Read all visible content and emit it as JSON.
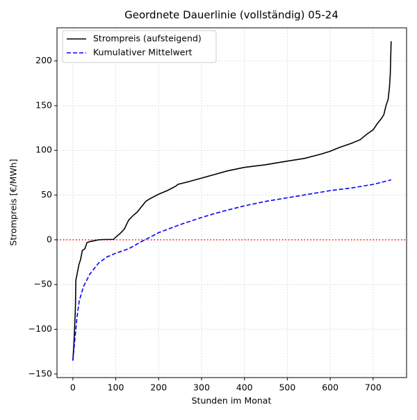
{
  "chart_data": {
    "type": "line",
    "title": "Geordnete Dauerlinie (vollständig) 05-24",
    "xlabel": "Stunden im Monat",
    "ylabel": "Strompreis [€/MWh]",
    "series": [
      {
        "name": "Strompreis (aufsteigend)",
        "color": "#000000",
        "dash": "solid",
        "x": [
          0,
          2,
          4,
          6,
          7,
          10,
          14,
          18,
          22,
          28,
          33,
          40,
          50,
          60,
          70,
          95,
          100,
          110,
          120,
          130,
          140,
          150,
          160,
          170,
          180,
          200,
          220,
          240,
          245,
          270,
          300,
          330,
          360,
          400,
          450,
          500,
          540,
          580,
          600,
          620,
          650,
          670,
          685,
          700,
          710,
          720,
          725,
          730,
          735,
          738,
          740,
          742
        ],
        "values": [
          -135,
          -120,
          -100,
          -75,
          -45,
          -38,
          -28,
          -22,
          -12,
          -10,
          -3,
          -2,
          -1,
          0,
          0.3,
          0.5,
          3,
          7,
          12,
          22,
          27,
          31,
          37,
          43,
          46,
          51,
          55,
          60,
          62,
          65,
          69,
          73,
          77,
          81,
          84,
          88,
          91,
          96,
          99,
          103,
          108,
          112,
          118,
          123,
          130,
          136,
          140,
          150,
          157,
          170,
          185,
          222
        ]
      },
      {
        "name": "Kumulativer Mittelwert",
        "color": "#0000ff",
        "dash": "dashed",
        "x": [
          0,
          5,
          10,
          15,
          25,
          40,
          60,
          80,
          100,
          130,
          160,
          200,
          250,
          300,
          350,
          400,
          450,
          500,
          550,
          600,
          650,
          700,
          742
        ],
        "values": [
          -135,
          -110,
          -85,
          -68,
          -52,
          -38,
          -26,
          -19,
          -15,
          -10,
          -2,
          8,
          17,
          25,
          32,
          38,
          43,
          47,
          51,
          55,
          58,
          62,
          67
        ]
      }
    ],
    "hlines": [
      {
        "value": 0,
        "color": "#ff0000"
      }
    ],
    "xlim": [
      -37,
      778
    ],
    "ylim": [
      -154,
      237
    ],
    "xticks": [
      0,
      100,
      200,
      300,
      400,
      500,
      600,
      700
    ],
    "yticks": [
      {
        "value": -150,
        "label": "−150"
      },
      {
        "value": -100,
        "label": "−100"
      },
      {
        "value": -50,
        "label": "−50"
      },
      0,
      50,
      100,
      150,
      200
    ],
    "grid": true,
    "legend": "upper left"
  }
}
